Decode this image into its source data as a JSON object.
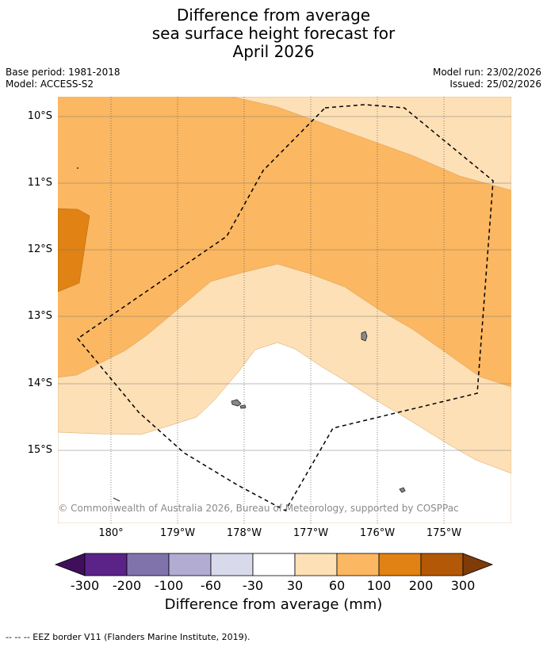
{
  "title": {
    "line1": "Difference from average",
    "line2": "sea surface height forecast for",
    "line3": "April 2026"
  },
  "meta": {
    "base_period": "Base period: 1981-2018",
    "model": "Model: ACCESS-S2",
    "model_run": "Model run: 23/02/2026",
    "issued": "Issued: 25/02/2026"
  },
  "map": {
    "lat_labels": [
      "10°S",
      "11°S",
      "12°S",
      "13°S",
      "14°S",
      "15°S"
    ],
    "lon_labels": [
      "180°",
      "179°W",
      "178°W",
      "177°W",
      "176°W",
      "175°W"
    ],
    "copyright": "© Commonwealth of Australia 2026, Bureau of Meteorology, supported by COSPPac"
  },
  "colorbar": {
    "labels": [
      "-300",
      "-200",
      "-100",
      "-60",
      "-30",
      "30",
      "60",
      "100",
      "200",
      "300"
    ],
    "colors": [
      "#3f0f5c",
      "#5b2388",
      "#8073ac",
      "#b2abd2",
      "#d8daeb",
      "#ffffff",
      "#fee0b6",
      "#fbb761",
      "#e08214",
      "#b35806",
      "#7f3b08"
    ],
    "title": "Difference from average (mm)"
  },
  "footer": {
    "legend": "--  --  -- EEZ border V11 (Flanders Marine Institute, 2019)."
  }
}
